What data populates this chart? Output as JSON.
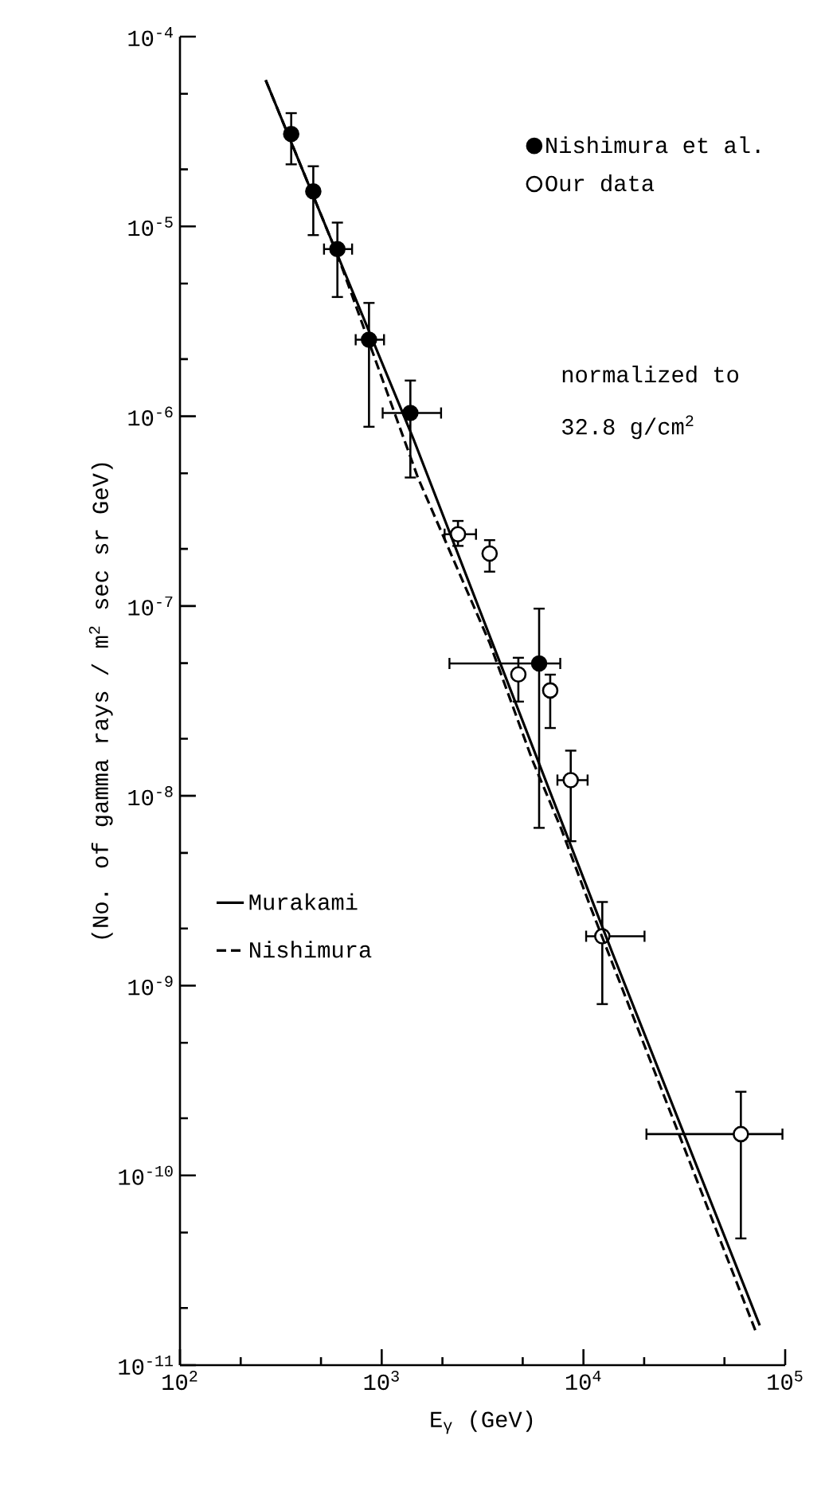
{
  "chart_data": {
    "type": "scatter",
    "xlabel": "E$_{γ}$ (GeV)",
    "ylabel": "(No. of gamma rays / m$^{2}$ sec sr GeV)",
    "log": "xy",
    "xlim": [
      100,
      100000
    ],
    "ylim": [
      1e-11,
      0.0001
    ],
    "xticks": [
      {
        "value": 100,
        "label": "10$^{2}$"
      },
      {
        "value": 200,
        "label": null
      },
      {
        "value": 500,
        "label": null
      },
      {
        "value": 1000,
        "label": "10$^{3}$"
      },
      {
        "value": 2000,
        "label": null
      },
      {
        "value": 5000,
        "label": null
      },
      {
        "value": 10000,
        "label": "10$^{4}$"
      },
      {
        "value": 20000,
        "label": null
      },
      {
        "value": 50000,
        "label": null
      },
      {
        "value": 100000,
        "label": "10$^{5}$"
      }
    ],
    "yticks": [
      {
        "value": 1e-11,
        "label": "10$^{-11}$"
      },
      {
        "value": 2e-11,
        "label": null
      },
      {
        "value": 5e-11,
        "label": null
      },
      {
        "value": 1e-10,
        "label": "10$^{-10}$"
      },
      {
        "value": 2e-10,
        "label": null
      },
      {
        "value": 5e-10,
        "label": null
      },
      {
        "value": 1e-09,
        "label": "10$^{-9}$"
      },
      {
        "value": 2e-09,
        "label": null
      },
      {
        "value": 5e-09,
        "label": null
      },
      {
        "value": 1e-08,
        "label": "10$^{-8}$"
      },
      {
        "value": 2e-08,
        "label": null
      },
      {
        "value": 5e-08,
        "label": null
      },
      {
        "value": 1e-07,
        "label": "10$^{-7}$"
      },
      {
        "value": 2e-07,
        "label": null
      },
      {
        "value": 5e-07,
        "label": null
      },
      {
        "value": 1e-06,
        "label": "10$^{-6}$"
      },
      {
        "value": 2e-06,
        "label": null
      },
      {
        "value": 5e-06,
        "label": null
      },
      {
        "value": 1e-05,
        "label": "10$^{-5}$"
      },
      {
        "value": 2e-05,
        "label": null
      },
      {
        "value": 5e-05,
        "label": null
      },
      {
        "value": 0.0001,
        "label": "10$^{-4}$"
      }
    ],
    "legend": "top right",
    "annotations": [
      "normalized to",
      "32.8  g/cm$^{2}$"
    ],
    "series": [
      {
        "name": "Nishimura et al.",
        "color": "#000000",
        "x": [
          356,
          458,
          603,
          865,
          1387,
          6030
        ],
        "values": [
          3.07e-05,
          1.53e-05,
          7.6e-06,
          2.53e-06,
          1.04e-06,
          4.98e-08
        ],
        "errors": [
          [
            2.1e-05,
            4e-05
          ],
          [
            8.9e-06,
            2.1e-05
          ],
          [
            4.2e-06,
            1.06e-05
          ],
          [
            8.7e-07,
            4e-06
          ],
          [
            4.7e-07,
            1.56e-06
          ],
          [
            6.7e-09,
            9.8e-08
          ]
        ],
        "xerrors": [
          null,
          null,
          [
            512,
            721
          ],
          [
            735,
            1038
          ],
          [
            1000,
            1991
          ],
          [
            2143,
            7760
          ]
        ]
      },
      {
        "name": "Our data",
        "color": "#ffffff",
        "x": [
          2388,
          3427,
          4757,
          6844,
          8650,
          12400,
          60300
        ],
        "values": [
          2.39e-07,
          1.89e-07,
          4.36e-08,
          3.59e-08,
          1.21e-08,
          1.82e-09,
          1.65e-10
        ],
        "errors": [
          [
            2.05e-07,
            2.84e-07
          ],
          [
            1.5e-07,
            2.25e-07
          ],
          [
            3.1e-08,
            5.4e-08
          ],
          [
            2.25e-08,
            4.4e-08
          ],
          [
            5.7e-09,
            1.75e-08
          ],
          [
            7.9e-10,
            2.79e-09
          ],
          [
            4.6e-11,
            2.79e-10
          ]
        ],
        "xerrors": [
          [
            2028,
            2966
          ],
          null,
          null,
          null,
          [
            7350,
            10600
          ],
          [
            10200,
            20300
          ],
          [
            20300,
            98000
          ]
        ]
      },
      {
        "name": "Murakami",
        "type": "line",
        "line_style": "solid",
        "color": "#000000",
        "x": [
          266,
          603,
          1436,
          13870,
          74800
        ],
        "values": [
          5.9e-05,
          7.1e-06,
          7.6e-07,
          1.5e-09,
          1.62e-11
        ]
      },
      {
        "name": "Nishimura",
        "type": "line",
        "line_style": "dashed",
        "color": "#000000",
        "x": [
          266,
          603,
          1517,
          3427,
          5598,
          7760,
          10940,
          72100
        ],
        "values": [
          5.9e-05,
          7.1e-06,
          4.7e-07,
          6.4e-08,
          1.53e-08,
          6.7e-09,
          2.53e-09,
          1.47e-11
        ]
      }
    ]
  }
}
